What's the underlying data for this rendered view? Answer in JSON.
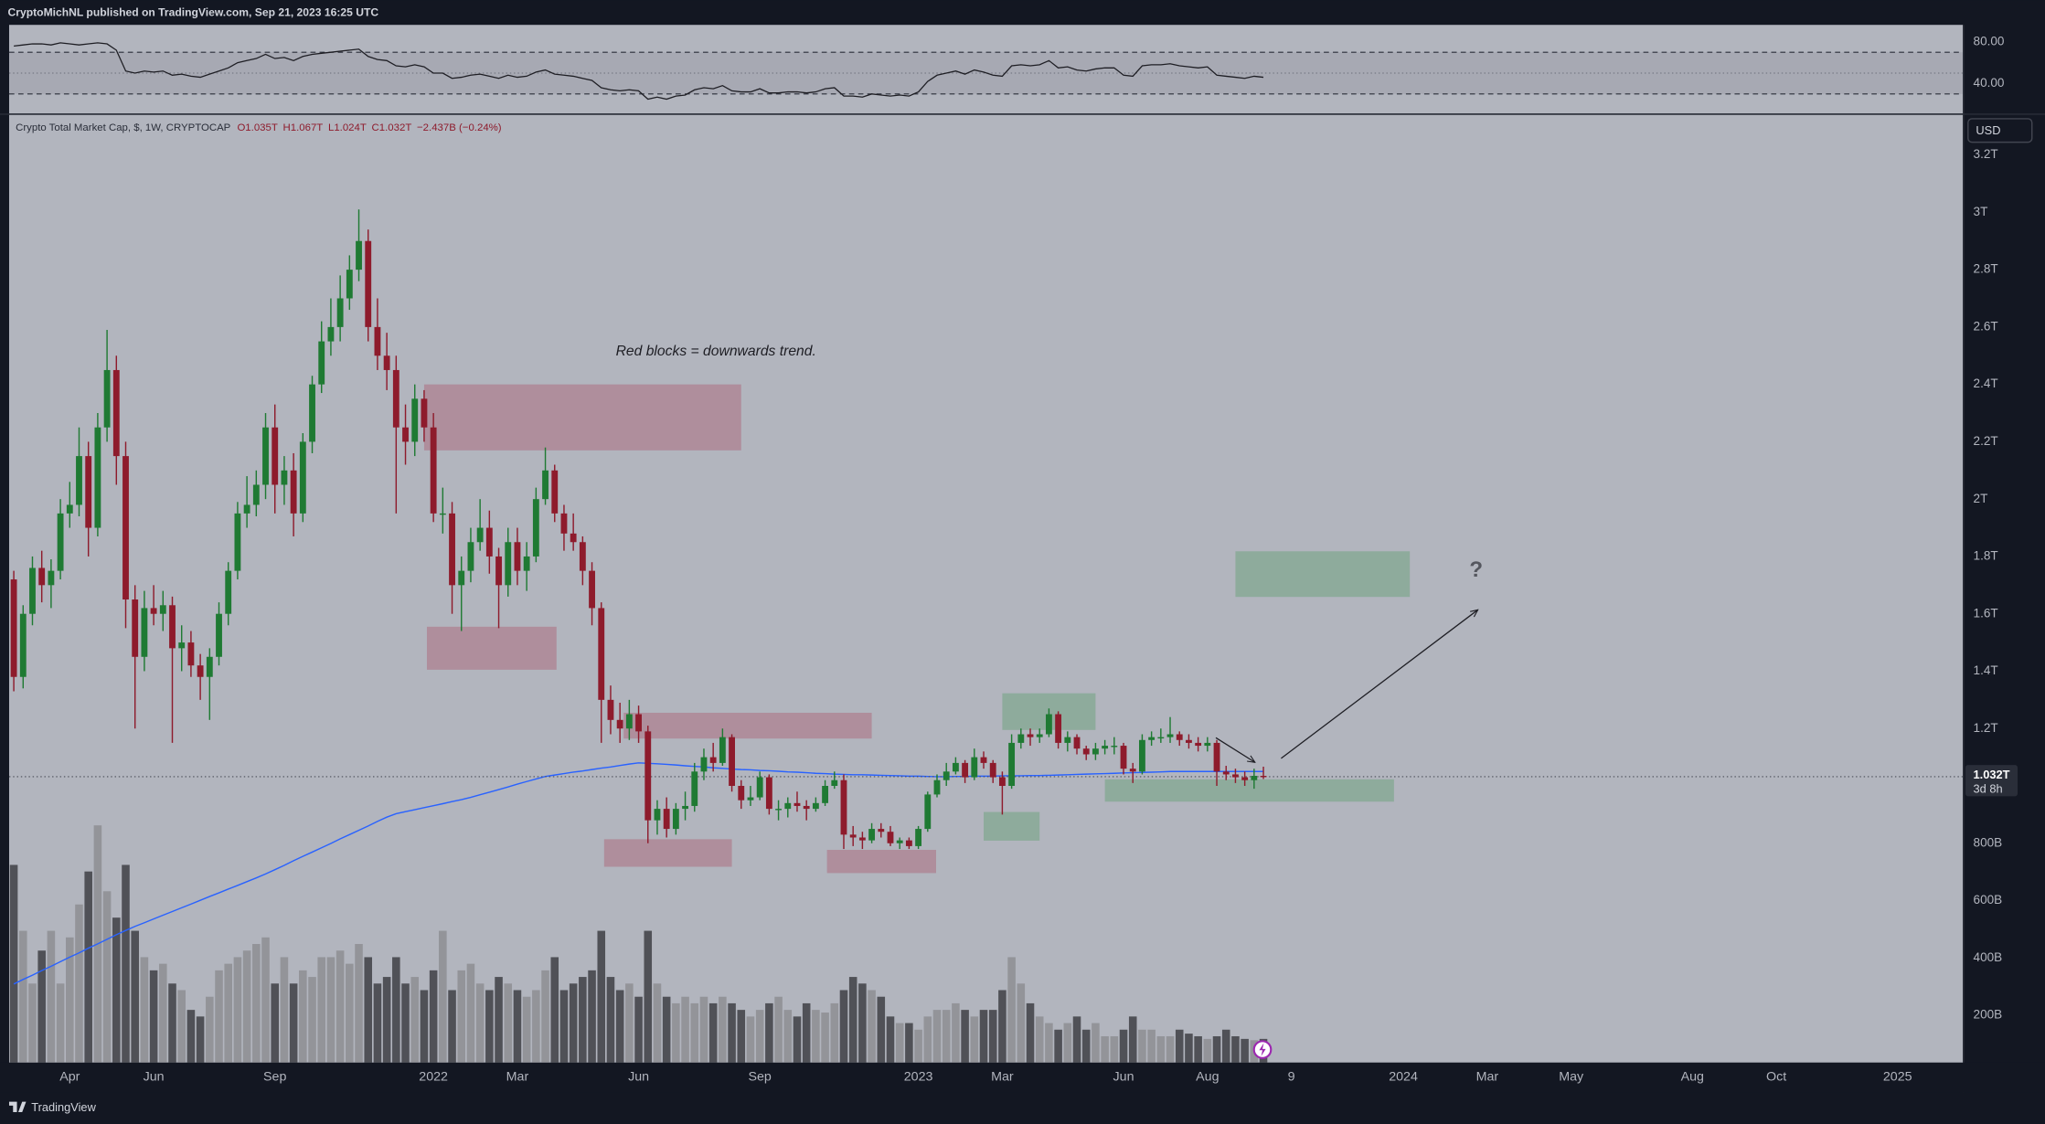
{
  "header": {
    "publisher": "CryptoMichNL published on TradingView.com, Sep 21, 2023 16:25 UTC",
    "symbol": "Crypto Total Market Cap, $, 1W, CRYPTOCAP",
    "ohlc": [
      "O1.035T",
      "H1.067T",
      "L1.024T",
      "C1.032T",
      "−2.437B (−0.24%)"
    ],
    "currency": "USD"
  },
  "footer": {
    "brand": "TradingView"
  },
  "chart_data": [
    {
      "type": "candlestick",
      "xlim": [
        -0.5,
        209
      ],
      "xticks": [
        {
          "value": 6,
          "label": "Apr"
        },
        {
          "value": 15,
          "label": "Jun"
        },
        {
          "value": 28,
          "label": "Sep"
        },
        {
          "value": 45,
          "label": "2022"
        },
        {
          "value": 54,
          "label": "Mar"
        },
        {
          "value": 67,
          "label": "Jun"
        },
        {
          "value": 80,
          "label": "Sep"
        },
        {
          "value": 97,
          "label": "2023"
        },
        {
          "value": 106,
          "label": "Mar"
        },
        {
          "value": 119,
          "label": "Jun"
        },
        {
          "value": 128,
          "label": "Aug"
        },
        {
          "value": 137,
          "label": "9"
        },
        {
          "value": 149,
          "label": "2024"
        },
        {
          "value": 158,
          "label": "Mar"
        },
        {
          "value": 167,
          "label": "May"
        },
        {
          "value": 180,
          "label": "Aug"
        },
        {
          "value": 189,
          "label": "Oct"
        },
        {
          "value": 202,
          "label": "2025"
        }
      ],
      "ylim": [
        35,
        3340
      ],
      "yticks": [
        {
          "value": 200,
          "label": "200B"
        },
        {
          "value": 400,
          "label": "400B"
        },
        {
          "value": 600,
          "label": "600B"
        },
        {
          "value": 800,
          "label": "800B"
        },
        {
          "value": 1200,
          "label": "1.2T"
        },
        {
          "value": 1400,
          "label": "1.4T"
        },
        {
          "value": 1600,
          "label": "1.6T"
        },
        {
          "value": 1800,
          "label": "1.8T"
        },
        {
          "value": 2000,
          "label": "2T"
        },
        {
          "value": 2200,
          "label": "2.2T"
        },
        {
          "value": 2400,
          "label": "2.4T"
        },
        {
          "value": 2600,
          "label": "2.6T"
        },
        {
          "value": 2800,
          "label": "2.8T"
        },
        {
          "value": 3000,
          "label": "3T"
        },
        {
          "value": 3200,
          "label": "3.2T"
        }
      ],
      "up_color": "#1f7a33",
      "down_color": "#8e1b2c",
      "open": [
        1720,
        1380,
        1600,
        1760,
        1700,
        1750,
        1950,
        1980,
        2150,
        1900,
        2250,
        2450,
        2150,
        1650,
        1450,
        1620,
        1600,
        1630,
        1480,
        1500,
        1420,
        1380,
        1450,
        1600,
        1750,
        1950,
        1980,
        2050,
        2250,
        2050,
        2100,
        1950,
        2200,
        2400,
        2550,
        2600,
        2700,
        2800,
        2900,
        2600,
        2500,
        2450,
        2250,
        2200,
        2350,
        2250,
        1950,
        1950,
        1700,
        1750,
        1850,
        1900,
        1800,
        1700,
        1850,
        1750,
        1800,
        2000,
        2100,
        1950,
        1880,
        1850,
        1750,
        1620,
        1300,
        1230,
        1200,
        1250,
        1190,
        880,
        920,
        850,
        920,
        930,
        1050,
        1100,
        1080,
        1170,
        1000,
        950,
        960,
        1030,
        920,
        920,
        940,
        930,
        920,
        940,
        1000,
        1020,
        830,
        820,
        810,
        850,
        840,
        800,
        810,
        790,
        850,
        970,
        1020,
        1050,
        1080,
        1030,
        1100,
        1080,
        1030,
        1000,
        1150,
        1180,
        1170,
        1180,
        1250,
        1150,
        1170,
        1130,
        1110,
        1130,
        1140,
        1140,
        1060,
        1050,
        1160,
        1170,
        1170,
        1180,
        1160,
        1150,
        1140,
        1150,
        1050,
        1040,
        1030,
        1020,
        1035
      ],
      "high": [
        1750,
        1630,
        1800,
        1820,
        1790,
        2000,
        2060,
        2250,
        2200,
        2300,
        2590,
        2500,
        2200,
        1700,
        1680,
        1700,
        1680,
        1660,
        1560,
        1540,
        1460,
        1480,
        1640,
        1780,
        1990,
        2080,
        2100,
        2300,
        2330,
        2150,
        2160,
        2230,
        2430,
        2620,
        2700,
        2780,
        2850,
        3010,
        2940,
        2700,
        2580,
        2500,
        2330,
        2400,
        2380,
        2300,
        2040,
        1990,
        1800,
        1900,
        2000,
        1960,
        1830,
        1900,
        1900,
        1850,
        2040,
        2180,
        2120,
        1980,
        1950,
        1870,
        1780,
        1640,
        1350,
        1290,
        1300,
        1280,
        1210,
        950,
        960,
        940,
        980,
        1080,
        1130,
        1150,
        1200,
        1180,
        1020,
        1000,
        1050,
        1040,
        950,
        960,
        980,
        950,
        960,
        1020,
        1050,
        1040,
        860,
        840,
        870,
        870,
        860,
        820,
        820,
        860,
        980,
        1040,
        1080,
        1100,
        1090,
        1130,
        1120,
        1090,
        1050,
        1180,
        1200,
        1200,
        1200,
        1270,
        1260,
        1190,
        1180,
        1140,
        1150,
        1160,
        1170,
        1150,
        1080,
        1180,
        1190,
        1200,
        1240,
        1190,
        1180,
        1170,
        1170,
        1160,
        1070,
        1060,
        1050,
        1060,
        1067
      ],
      "low": [
        1330,
        1340,
        1560,
        1640,
        1620,
        1720,
        1900,
        1940,
        1800,
        1870,
        2200,
        2050,
        1550,
        1200,
        1400,
        1560,
        1540,
        1150,
        1400,
        1380,
        1300,
        1230,
        1420,
        1560,
        1720,
        1900,
        1940,
        2000,
        1950,
        1980,
        1870,
        1920,
        2160,
        2370,
        2500,
        2550,
        2660,
        2760,
        2550,
        2450,
        2380,
        1950,
        2120,
        2150,
        2200,
        1920,
        1880,
        1600,
        1540,
        1710,
        1820,
        1740,
        1550,
        1660,
        1700,
        1680,
        1780,
        1980,
        1920,
        1820,
        1820,
        1700,
        1560,
        1150,
        1180,
        1150,
        1160,
        1150,
        800,
        830,
        820,
        830,
        880,
        910,
        1020,
        1050,
        1070,
        980,
        920,
        930,
        950,
        900,
        880,
        890,
        910,
        880,
        910,
        930,
        990,
        780,
        790,
        780,
        800,
        820,
        790,
        780,
        780,
        780,
        840,
        960,
        1000,
        1040,
        1010,
        1020,
        1060,
        1010,
        900,
        990,
        1130,
        1140,
        1150,
        1170,
        1130,
        1120,
        1110,
        1090,
        1090,
        1110,
        1110,
        1040,
        1010,
        1040,
        1140,
        1150,
        1150,
        1140,
        1130,
        1120,
        1120,
        1000,
        1020,
        1010,
        1000,
        990,
        1024
      ],
      "close": [
        1380,
        1600,
        1760,
        1700,
        1750,
        1950,
        1980,
        2150,
        1900,
        2250,
        2450,
        2150,
        1650,
        1450,
        1620,
        1600,
        1630,
        1480,
        1500,
        1420,
        1380,
        1450,
        1600,
        1750,
        1950,
        1980,
        2050,
        2250,
        2050,
        2100,
        1950,
        2200,
        2400,
        2550,
        2600,
        2700,
        2800,
        2900,
        2600,
        2500,
        2450,
        2250,
        2200,
        2350,
        2250,
        1950,
        1950,
        1700,
        1750,
        1850,
        1900,
        1800,
        1700,
        1850,
        1750,
        1800,
        2000,
        2100,
        1950,
        1880,
        1850,
        1750,
        1620,
        1300,
        1230,
        1200,
        1250,
        1190,
        880,
        920,
        850,
        920,
        930,
        1050,
        1100,
        1080,
        1170,
        1000,
        950,
        960,
        1030,
        920,
        920,
        940,
        930,
        920,
        940,
        1000,
        1020,
        830,
        820,
        810,
        850,
        840,
        800,
        810,
        790,
        850,
        970,
        1020,
        1050,
        1080,
        1030,
        1100,
        1080,
        1030,
        1000,
        1150,
        1180,
        1170,
        1180,
        1250,
        1150,
        1170,
        1130,
        1110,
        1130,
        1140,
        1140,
        1060,
        1050,
        1160,
        1170,
        1170,
        1180,
        1160,
        1150,
        1140,
        1150,
        1050,
        1040,
        1030,
        1020,
        1035,
        1032
      ],
      "volume": {
        "up_color": "#939499",
        "down_color": "#505157",
        "values": [
          150,
          100,
          60,
          85,
          100,
          60,
          95,
          120,
          145,
          180,
          130,
          110,
          150,
          100,
          80,
          70,
          75,
          60,
          55,
          40,
          35,
          50,
          70,
          75,
          80,
          85,
          90,
          95,
          60,
          80,
          60,
          70,
          65,
          80,
          80,
          85,
          75,
          90,
          80,
          60,
          65,
          80,
          60,
          65,
          55,
          70,
          100,
          55,
          70,
          75,
          60,
          55,
          65,
          60,
          55,
          50,
          55,
          70,
          80,
          55,
          60,
          65,
          70,
          100,
          65,
          55,
          60,
          50,
          100,
          60,
          50,
          45,
          50,
          45,
          50,
          45,
          50,
          45,
          40,
          35,
          40,
          45,
          50,
          40,
          35,
          45,
          40,
          38,
          45,
          55,
          65,
          60,
          55,
          50,
          35,
          30,
          30,
          25,
          35,
          40,
          40,
          45,
          40,
          35,
          40,
          40,
          55,
          80,
          60,
          45,
          35,
          30,
          25,
          30,
          35,
          25,
          30,
          20,
          20,
          25,
          35,
          25,
          25,
          20,
          20,
          25,
          22,
          20,
          18,
          20,
          25,
          20,
          18,
          17,
          18
        ]
      },
      "moving_average": {
        "color": "#2962ff",
        "values": [
          309,
          325,
          340,
          356,
          371,
          387,
          403,
          418,
          434,
          449,
          465,
          481,
          496,
          510,
          523,
          536,
          549,
          562,
          575,
          588,
          601,
          614,
          627,
          640,
          653,
          666,
          679,
          693,
          708,
          723,
          739,
          754,
          769,
          784,
          799,
          815,
          830,
          845,
          860,
          876,
          891,
          903,
          910,
          917,
          924,
          931,
          938,
          945,
          952,
          960,
          969,
          978,
          987,
          996,
          1006,
          1015,
          1024,
          1033,
          1038,
          1043,
          1048,
          1052,
          1057,
          1062,
          1066,
          1071,
          1076,
          1080,
          1079,
          1077,
          1075,
          1073,
          1070,
          1068,
          1066,
          1063,
          1061,
          1059,
          1057,
          1056,
          1054,
          1053,
          1051,
          1049,
          1048,
          1046,
          1044,
          1043,
          1041,
          1040,
          1039,
          1039,
          1038,
          1037,
          1036,
          1035,
          1034,
          1034,
          1033,
          1032,
          1032,
          1033,
          1033,
          1034,
          1034,
          1034,
          1035,
          1035,
          1035,
          1036,
          1036,
          1037,
          1038,
          1039,
          1040,
          1041,
          1042,
          1043,
          1044,
          1045,
          1046,
          1047,
          1048,
          1049,
          1050,
          1050,
          1050,
          1050,
          1050,
          1050,
          1050,
          1050,
          1050,
          1050,
          1050
        ]
      },
      "zones": [
        {
          "color": "rgba(170,70,95,0.35)",
          "x": [
            44,
            78
          ],
          "y": [
            2170,
            2400
          ]
        },
        {
          "color": "rgba(170,70,95,0.35)",
          "x": [
            44.3,
            58.2
          ],
          "y": [
            1405,
            1555
          ]
        },
        {
          "color": "rgba(170,70,95,0.35)",
          "x": [
            65.4,
            92
          ],
          "y": [
            1165,
            1255
          ]
        },
        {
          "color": "rgba(170,70,95,0.35)",
          "x": [
            63.3,
            77
          ],
          "y": [
            718,
            814
          ]
        },
        {
          "color": "rgba(170,70,95,0.35)",
          "x": [
            87.2,
            98.9
          ],
          "y": [
            696,
            777
          ]
        },
        {
          "color": "rgba(60,150,80,0.3)",
          "x": [
            106,
            116
          ],
          "y": [
            1195,
            1323
          ]
        },
        {
          "color": "rgba(60,150,80,0.3)",
          "x": [
            104,
            110
          ],
          "y": [
            809,
            909
          ]
        },
        {
          "color": "rgba(60,150,80,0.3)",
          "x": [
            117,
            148
          ],
          "y": [
            945,
            1023
          ]
        },
        {
          "color": "rgba(60,150,80,0.3)",
          "x": [
            131,
            149.7
          ],
          "y": [
            1659,
            1818
          ]
        }
      ],
      "arrows": [
        {
          "x": [
            128.9,
            133.1
          ],
          "y": [
            1168,
            1082
          ]
        },
        {
          "x": [
            135.9,
            157
          ],
          "y": [
            1096,
            1614
          ]
        }
      ],
      "annotations": [
        {
          "text": "Red blocks = downwards trend.",
          "x": 75.3,
          "y": 2514
        },
        {
          "text": "?",
          "x": 156.8,
          "y": 1750
        }
      ],
      "last_price": {
        "value": 1032,
        "label": "1.032T",
        "countdown": "3d 8h"
      }
    },
    {
      "type": "line",
      "color": "#1e1e24",
      "xlim": [
        -0.5,
        209
      ],
      "ylim": [
        11.25,
        96.25
      ],
      "yticks": [
        {
          "value": 80,
          "label": "80.00"
        },
        {
          "value": 40,
          "label": "40.00"
        }
      ],
      "levels": [
        70,
        30
      ],
      "midline": 50,
      "values": [
        76,
        77,
        78,
        78,
        77,
        79,
        78,
        77,
        78,
        79,
        78,
        72,
        52,
        50,
        52,
        51,
        52,
        48,
        49,
        47,
        46,
        49,
        52,
        55,
        60,
        62,
        64,
        68,
        64,
        65,
        62,
        66,
        68,
        69,
        70,
        71,
        72,
        73,
        66,
        63,
        62,
        57,
        56,
        58,
        56,
        50,
        50,
        45,
        46,
        48,
        49,
        47,
        45,
        48,
        46,
        47,
        51,
        53,
        49,
        48,
        47,
        45,
        43,
        36,
        34,
        33,
        34,
        33,
        25,
        27,
        25,
        28,
        29,
        34,
        36,
        35,
        38,
        33,
        32,
        32,
        35,
        31,
        31,
        32,
        32,
        31,
        32,
        35,
        36,
        28,
        28,
        27,
        30,
        29,
        28,
        29,
        28,
        32,
        42,
        48,
        50,
        52,
        49,
        53,
        51,
        48,
        47,
        57,
        58,
        57,
        58,
        62,
        55,
        56,
        53,
        52,
        54,
        55,
        55,
        48,
        47,
        57,
        58,
        58,
        59,
        57,
        56,
        55,
        56,
        48,
        47,
        46,
        45,
        47,
        46
      ]
    }
  ]
}
